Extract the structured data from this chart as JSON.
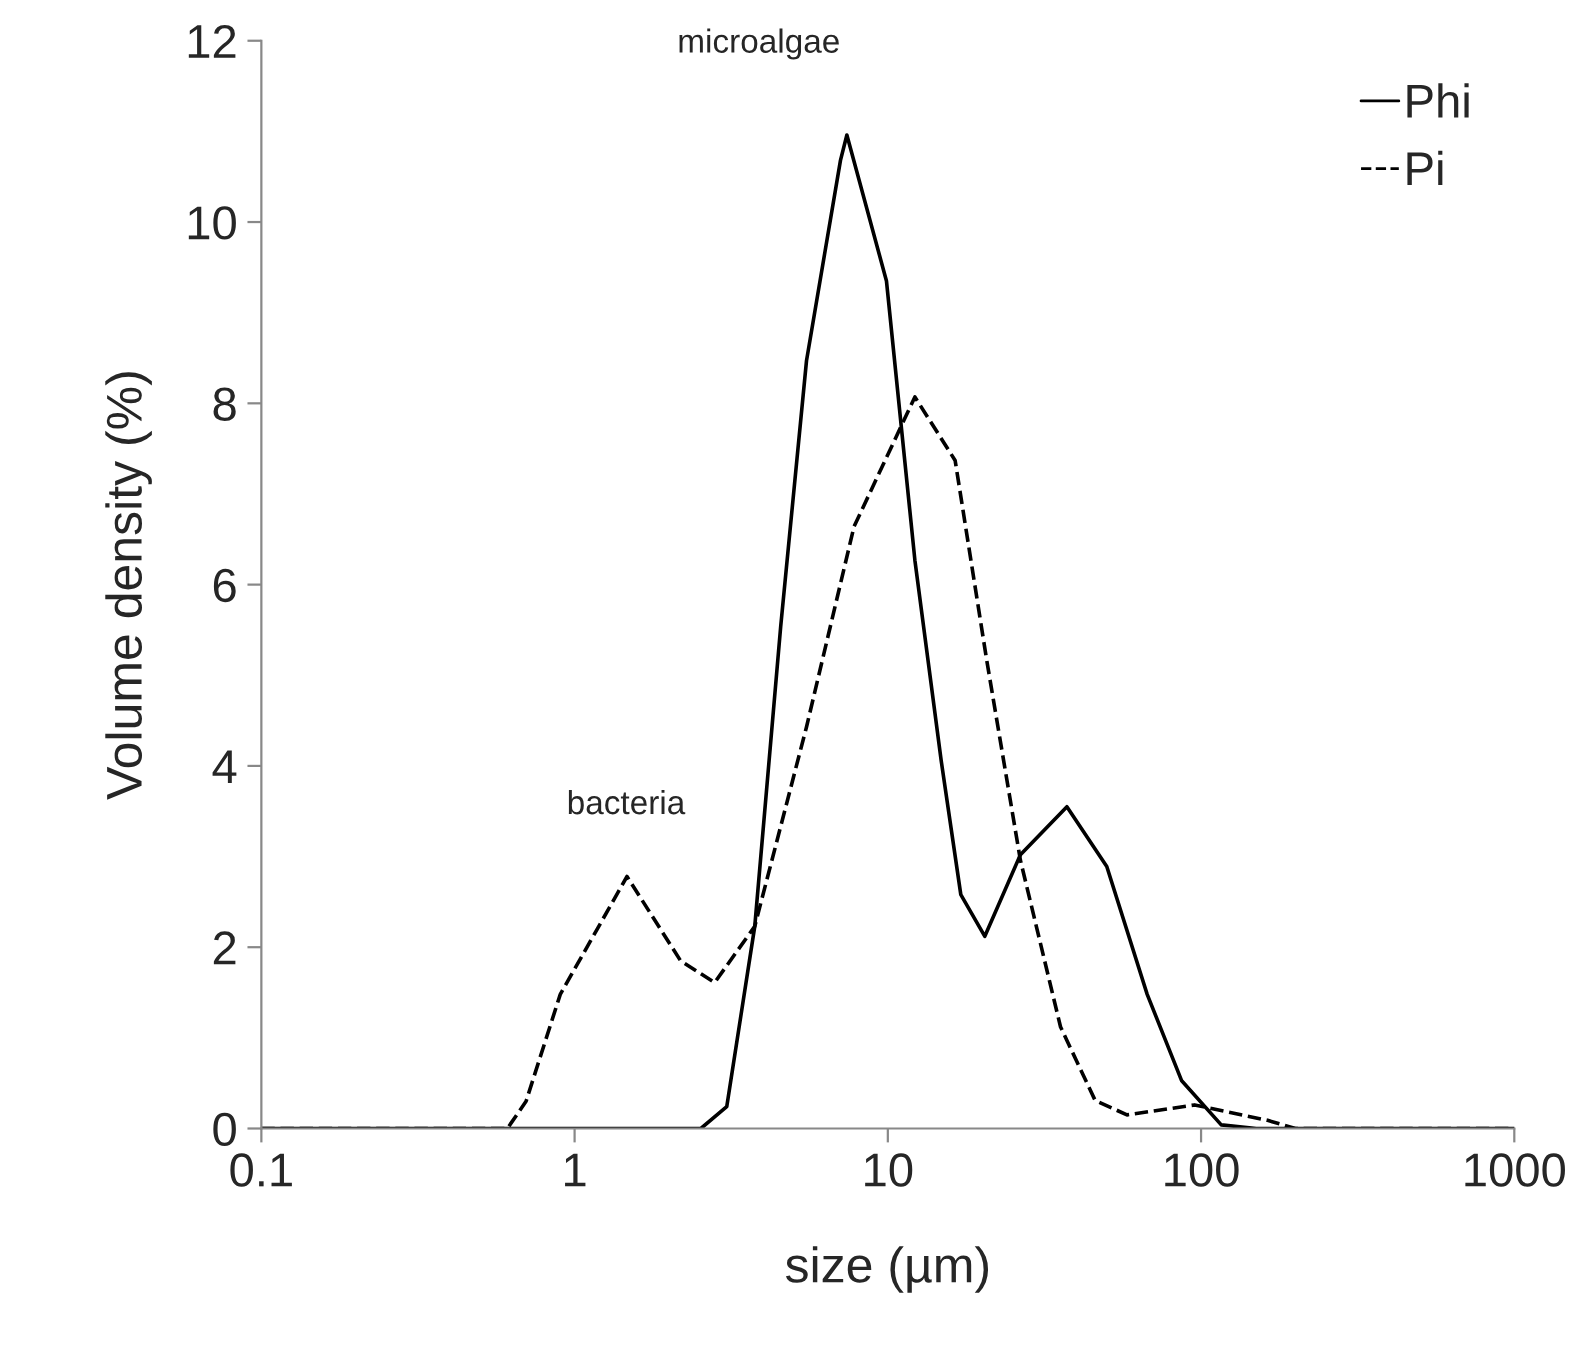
{
  "chart_data": {
    "type": "line",
    "xlabel": "size (µm)",
    "ylabel": "Volume density (%)",
    "log": "x",
    "xlim": [
      0.1,
      1000
    ],
    "xticks": [
      0.1,
      1,
      10,
      100,
      1000
    ],
    "ylim": [
      0,
      12
    ],
    "yticks": [
      0,
      2,
      4,
      6,
      8,
      10,
      12
    ],
    "grid": false,
    "legend": "top right",
    "marker": "none",
    "annotations": [
      "microalgae",
      "bacteria"
    ],
    "series": [
      {
        "name": "Phi",
        "color": "#000000",
        "line_style": "solid",
        "x": [
          0.1,
          1,
          2.53,
          3.06,
          3.76,
          4.55,
          5.5,
          7.06,
          7.4,
          9.9,
          12.2,
          14.8,
          17.1,
          20.4,
          26.5,
          37.3,
          50,
          67.3,
          86.6,
          116,
          150,
          1000
        ],
        "values": [
          0,
          0,
          0,
          0.24,
          2.23,
          5.54,
          8.47,
          10.68,
          10.96,
          9.35,
          6.27,
          4.06,
          2.58,
          2.12,
          3.02,
          3.55,
          2.89,
          1.48,
          0.53,
          0.04,
          0,
          0
        ]
      },
      {
        "name": "Pi",
        "color": "#000000",
        "line_style": "dashed",
        "x": [
          0.1,
          0.61,
          0.7,
          0.9,
          1.47,
          2.18,
          2.8,
          3.76,
          5.5,
          7.8,
          12.2,
          16.4,
          20.7,
          26.5,
          35.6,
          45.9,
          58,
          95.4,
          163,
          200,
          1000
        ],
        "values": [
          0,
          0,
          0.3,
          1.48,
          2.78,
          1.85,
          1.61,
          2.23,
          4.43,
          6.64,
          8.07,
          7.37,
          5.16,
          2.96,
          1.12,
          0.31,
          0.15,
          0.26,
          0.09,
          0,
          0
        ]
      }
    ]
  }
}
